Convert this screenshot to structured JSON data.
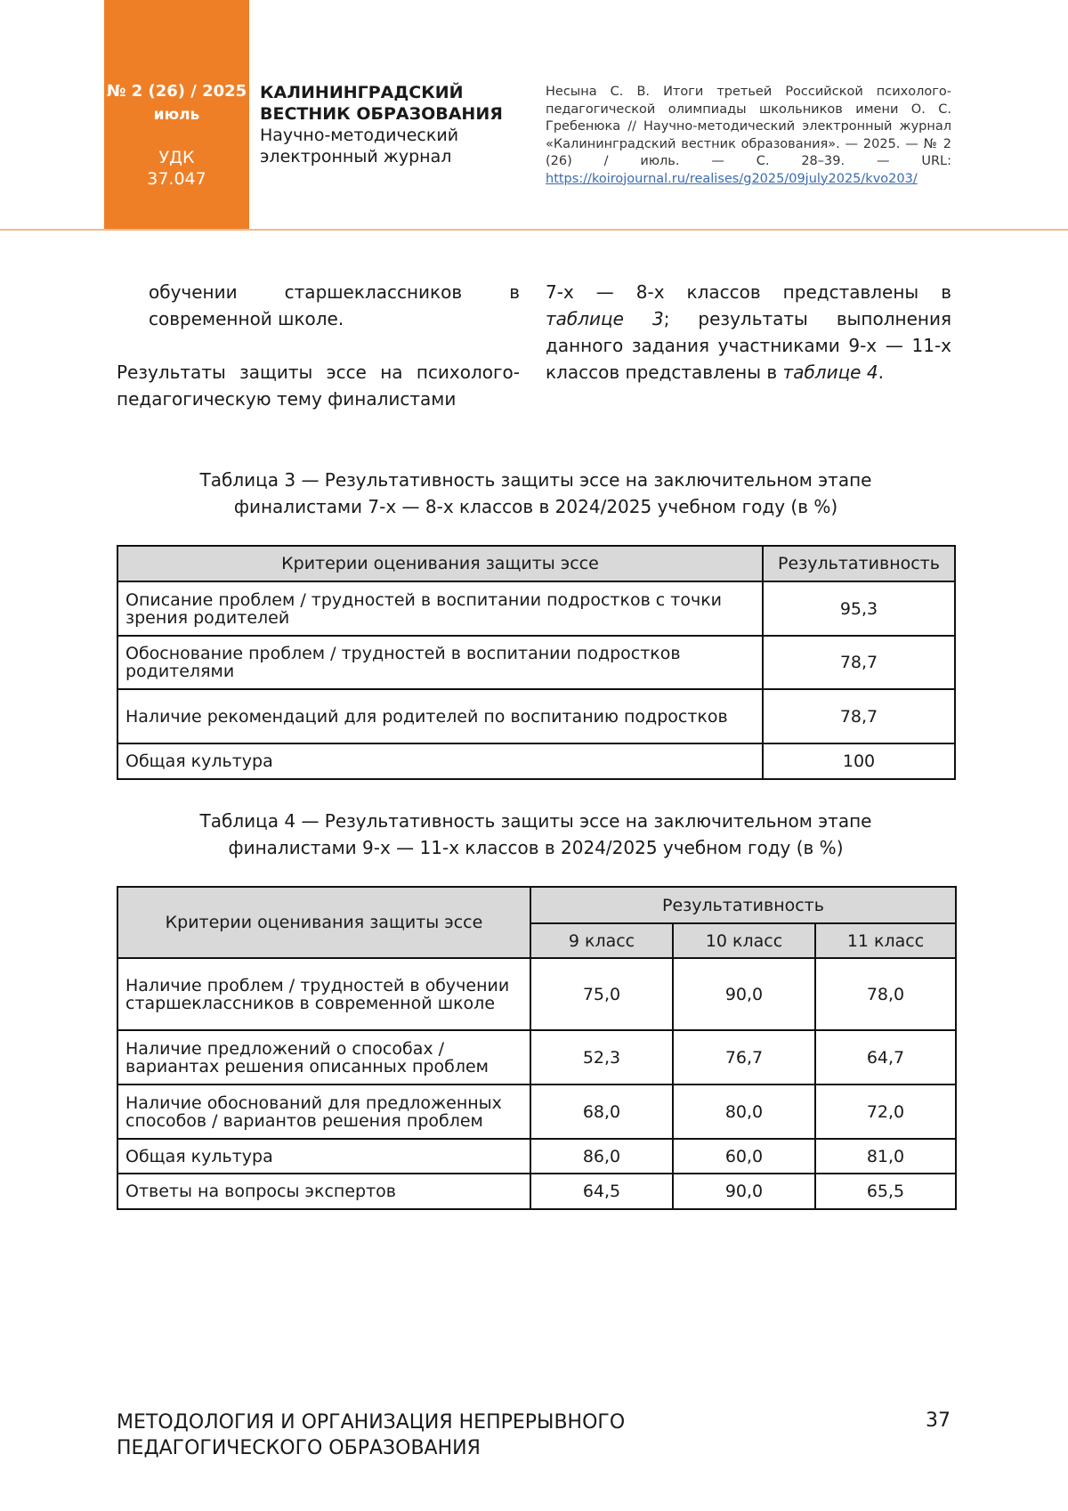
{
  "header": {
    "issue": "№ 2 (26) / 2025",
    "month": "июль",
    "udk_label": "УДК",
    "udk_code": "37.047",
    "journal_title_line1": "КАЛИНИНГРАДСКИЙ",
    "journal_title_line2": "ВЕСТНИК ОБРАЗОВАНИЯ",
    "journal_subtitle_line1": "Научно-методический",
    "journal_subtitle_line2": "электронный журнал",
    "citation": "Несына С. В. Итоги третьей Российской психолого-педагогической олимпиады школьников имени О. С. Гребенюка // Научно-методический электронный журнал «Калининградский вестник образования». — 2025. — № 2 (26) / июль. — С. 28–39. — URL: ",
    "citation_link": "https://koirojournal.ru/realises/g2025/09july2025/kvo203/",
    "accent_color": "#ef7f26"
  },
  "body": {
    "col1_p1": "обучении старшеклассников в современной школе.",
    "col1_p2": "Результаты защиты эссе на психолого-педагогическую тему финалистами",
    "col2_a": "7-х — 8-х классов представлены в ",
    "col2_ref1": "таблице 3",
    "col2_b": "; результаты выполнения данного задания участниками 9-х — 11-х классов представлены в ",
    "col2_ref2": "таблице 4",
    "col2_c": "."
  },
  "table3": {
    "caption_line1": "Таблица 3 — Результативность защиты эссе на заключительном этапе",
    "caption_line2": "финалистами 7-х — 8-х классов в 2024/2025 учебном году (в %)",
    "headers": [
      "Критерии оценивания защиты эссе",
      "Результативность"
    ],
    "rows": [
      [
        "Описание проблем / трудностей в воспитании подростков с точки зрения родителей",
        "95,3"
      ],
      [
        "Обоснование проблем / трудностей в воспитании подростков родителями",
        "78,7"
      ],
      [
        "Наличие рекомендаций для родителей по воспитанию подростков",
        "78,7"
      ],
      [
        "Общая культура",
        "100"
      ]
    ]
  },
  "table4": {
    "caption_line1": "Таблица 4 — Результативность защиты эссе на заключительном этапе",
    "caption_line2": "финалистами 9-х — 11-х классов в 2024/2025 учебном году (в %)",
    "header_criteria": "Критерии оценивания защиты эссе",
    "header_group": "Результативность",
    "subheaders": [
      "9 класс",
      "10 класс",
      "11 класс"
    ],
    "rows": [
      [
        "Наличие проблем / трудностей в обучении старшеклассников в современной школе",
        "75,0",
        "90,0",
        "78,0"
      ],
      [
        "Наличие предложений о способах / вариантах решения описанных проблем",
        "52,3",
        "76,7",
        "64,7"
      ],
      [
        "Наличие обоснований для предложенных способов / вариантов решения проблем",
        "68,0",
        "80,0",
        "72,0"
      ],
      [
        "Общая культура",
        "86,0",
        "60,0",
        "81,0"
      ],
      [
        "Ответы на вопросы экспертов",
        "64,5",
        "90,0",
        "65,5"
      ]
    ]
  },
  "footer": {
    "line1": "МЕТОДОЛОГИЯ И ОРГАНИЗАЦИЯ НЕПРЕРЫВНОГО",
    "line2": "ПЕДАГОГИЧЕСКОГО ОБРАЗОВАНИЯ",
    "page_number": "37"
  }
}
